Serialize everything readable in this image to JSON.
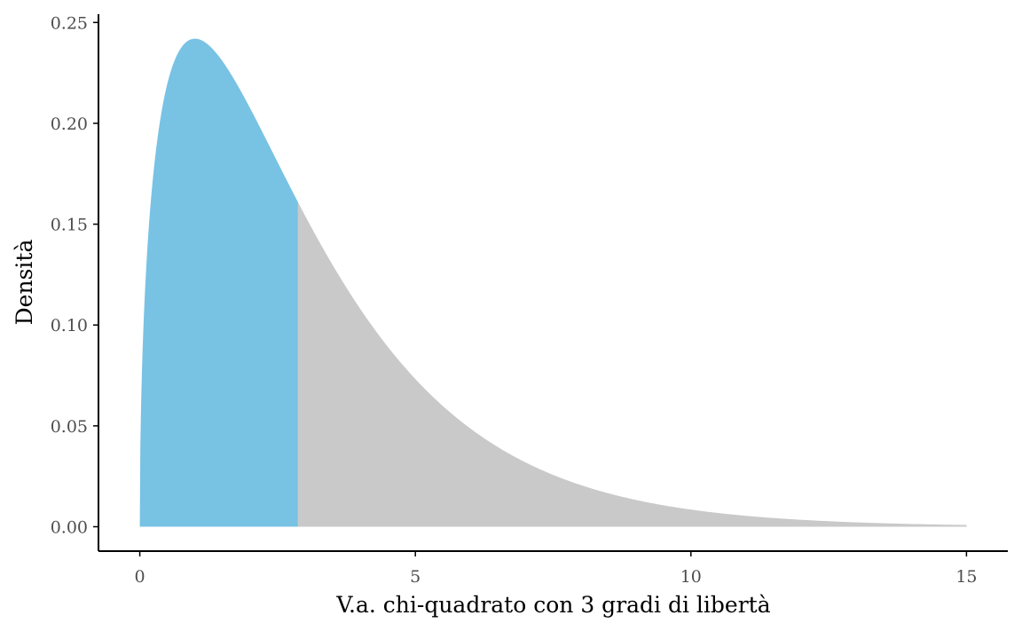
{
  "chart_data": {
    "type": "area",
    "distribution": "chi-squared",
    "degrees_of_freedom": 3,
    "shaded_region": {
      "from": 0,
      "to": 2.87
    },
    "x_range": [
      0,
      15
    ],
    "xlabel": "V.a. chi-quadrato con 3 gradi di libertà",
    "ylabel": "Densità",
    "xlim": [
      -0.75,
      15.75
    ],
    "ylim": [
      -0.0121,
      0.2541
    ],
    "x_ticks": [
      {
        "value": 0,
        "label": "0"
      },
      {
        "value": 5,
        "label": "5"
      },
      {
        "value": 10,
        "label": "10"
      },
      {
        "value": 15,
        "label": "15"
      }
    ],
    "y_ticks": [
      {
        "value": 0.0,
        "label": "0.00"
      },
      {
        "value": 0.05,
        "label": "0.05"
      },
      {
        "value": 0.1,
        "label": "0.10"
      },
      {
        "value": 0.15,
        "label": "0.15"
      },
      {
        "value": 0.2,
        "label": "0.20"
      },
      {
        "value": 0.25,
        "label": "0.25"
      }
    ],
    "grid": false,
    "colors": {
      "shaded": "#78c2e4",
      "tail": "#c9c9c9"
    }
  }
}
